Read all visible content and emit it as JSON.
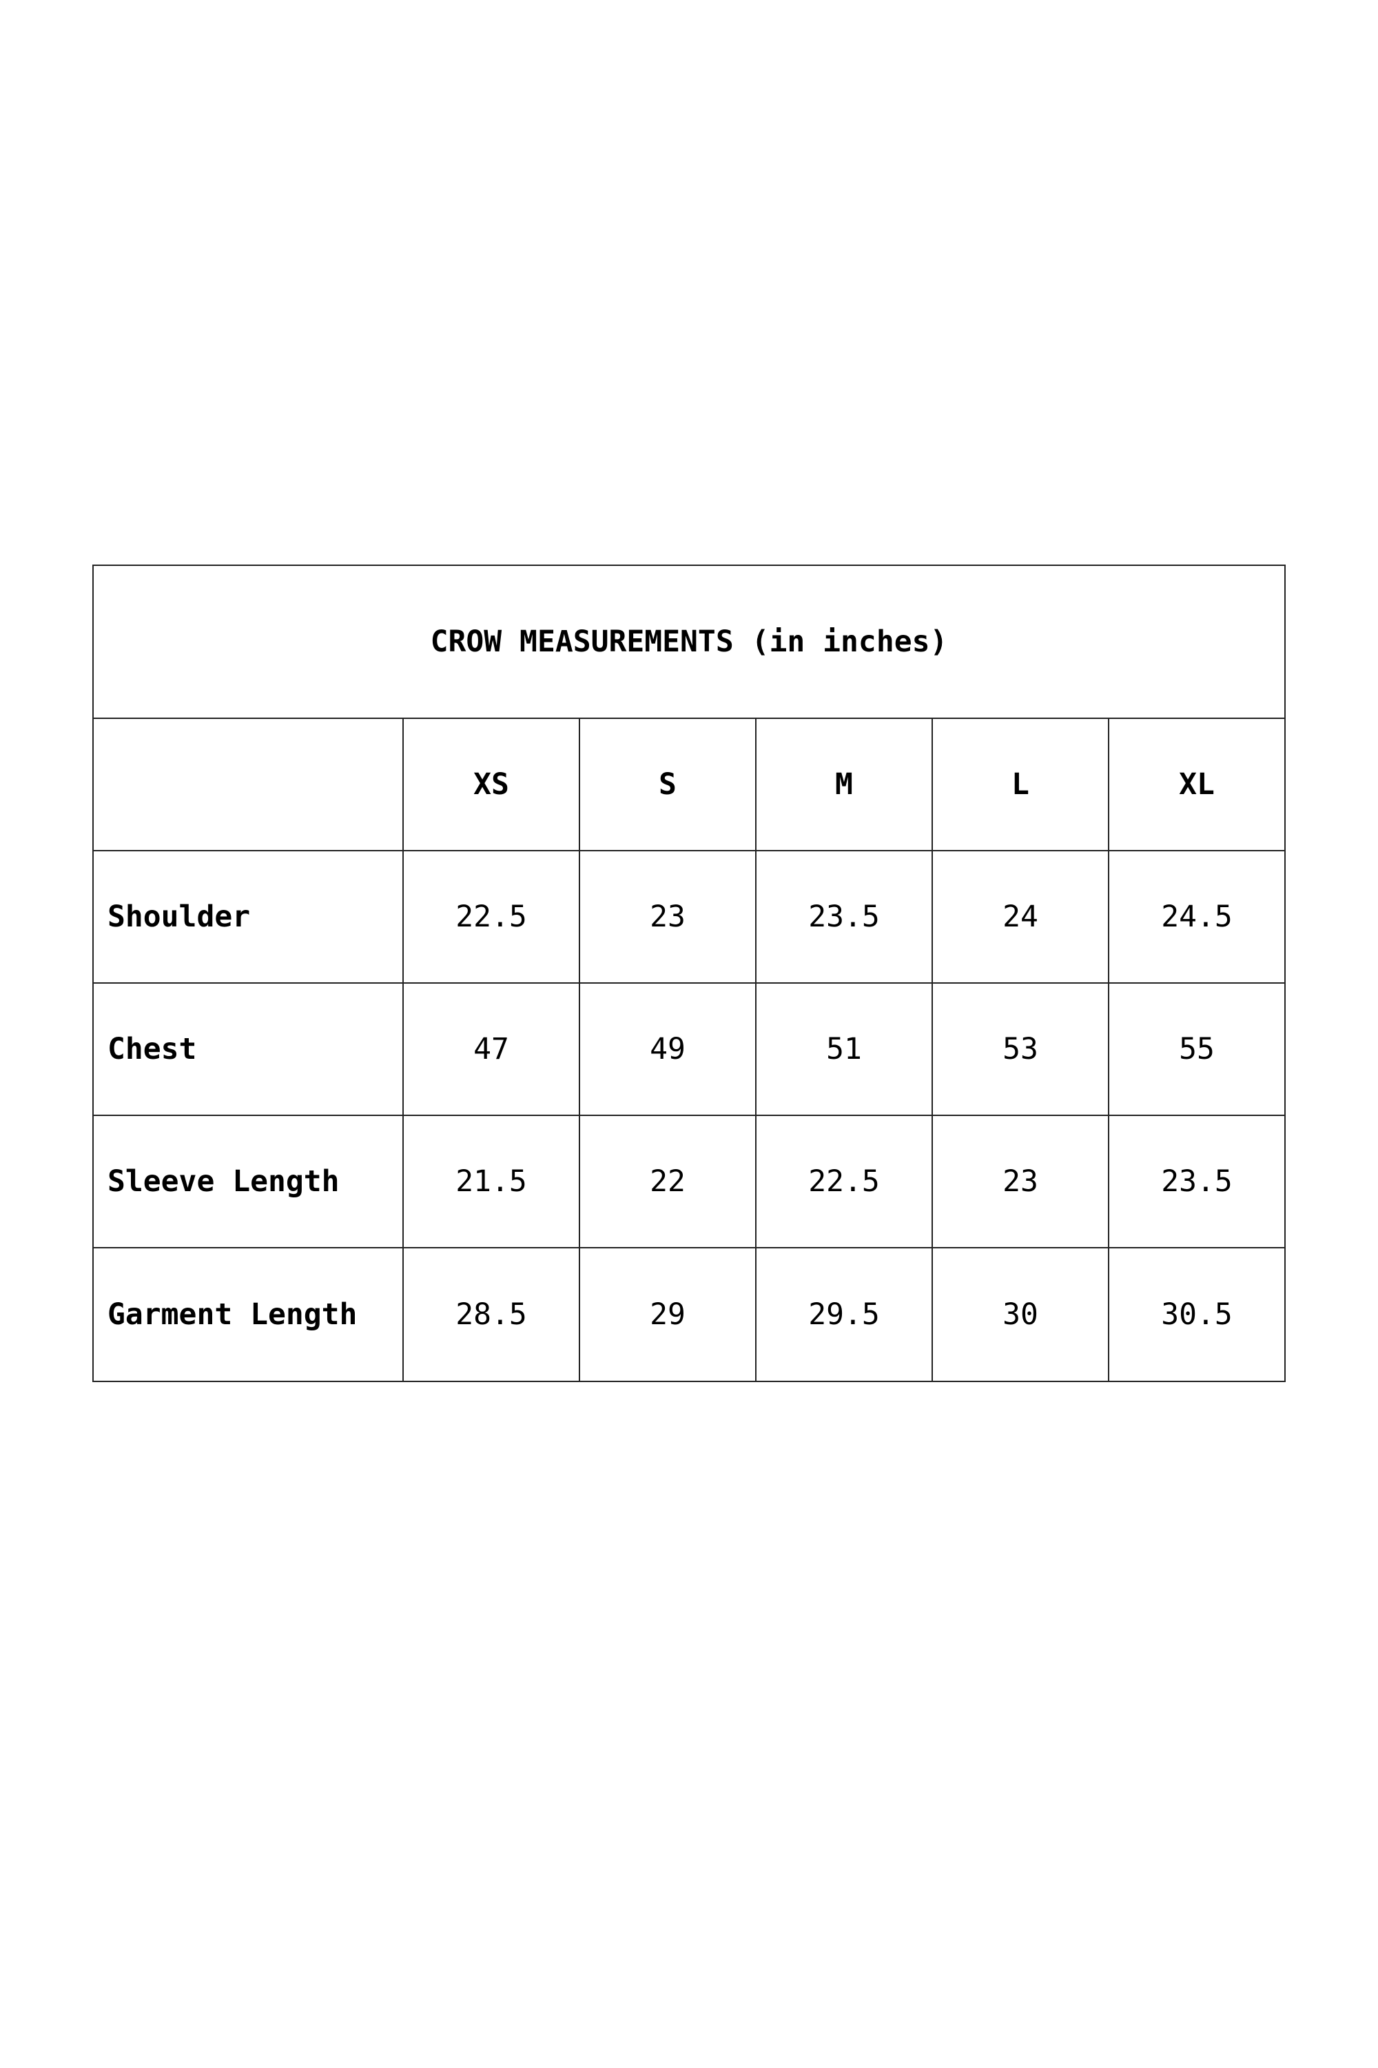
{
  "title": "CROW MEASUREMENTS (in inches)",
  "columns": [
    "",
    "XS",
    "S",
    "M",
    "L",
    "XL"
  ],
  "rows": [
    {
      "label": "Shoulder",
      "values": [
        "22.5",
        "23",
        "23.5",
        "24",
        "24.5"
      ]
    },
    {
      "label": "Chest",
      "values": [
        "47",
        "49",
        "51",
        "53",
        "55"
      ]
    },
    {
      "label": "Sleeve Length",
      "values": [
        "21.5",
        "22",
        "22.5",
        "23",
        "23.5"
      ]
    },
    {
      "label": "Garment Length",
      "values": [
        "28.5",
        "29",
        "29.5",
        "30",
        "30.5"
      ]
    }
  ]
}
